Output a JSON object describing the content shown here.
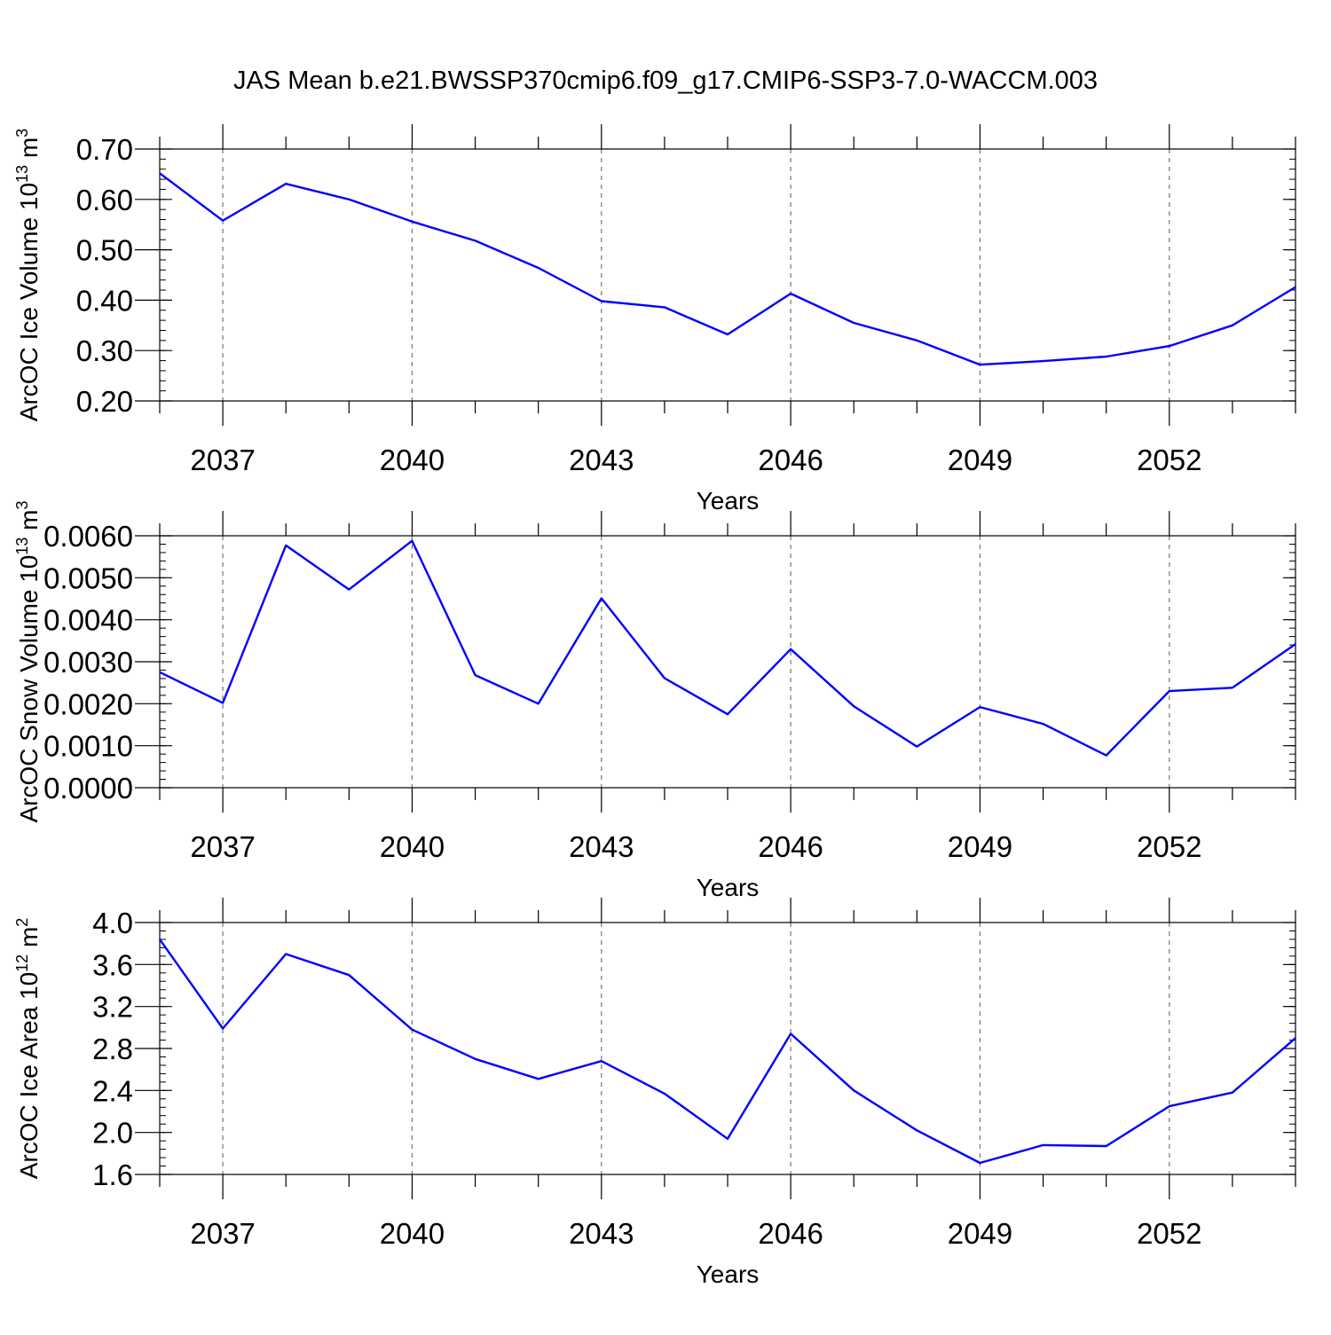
{
  "title": "JAS Mean b.e21.BWSSP370cmip6.f09_g17.CMIP6-SSP3-7.0-WACCM.003",
  "colors": {
    "line": "#0000ff",
    "axis": "#000000",
    "grid": "#777777"
  },
  "chart_data": [
    {
      "type": "line",
      "title": "",
      "xlabel": "Years",
      "ylabel": "ArcOC Ice Volume 10",
      "ylabel_sup": "13",
      "ylabel_unit": "m",
      "ylabel_unit_sup": "3",
      "xlim": [
        2036,
        2054
      ],
      "ylim": [
        0.2,
        0.7
      ],
      "xticks": [
        2037,
        2040,
        2043,
        2046,
        2049,
        2052
      ],
      "yticks": [
        "0.20",
        "0.30",
        "0.40",
        "0.50",
        "0.60",
        "0.70"
      ],
      "grid": "vertical dashed at major x ticks",
      "x": [
        2036,
        2037,
        2038,
        2039,
        2040,
        2041,
        2042,
        2043,
        2044,
        2045,
        2046,
        2047,
        2048,
        2049,
        2050,
        2051,
        2052,
        2053,
        2054
      ],
      "series": [
        {
          "values": [
            0.652,
            0.558,
            0.631,
            0.6,
            0.556,
            0.518,
            0.464,
            0.398,
            0.386,
            0.332,
            0.413,
            0.355,
            0.32,
            0.272,
            0.279,
            0.288,
            0.309,
            0.35,
            0.426
          ]
        }
      ]
    },
    {
      "type": "line",
      "title": "",
      "xlabel": "Years",
      "ylabel": "ArcOC Snow Volume 10",
      "ylabel_sup": "13",
      "ylabel_unit": "m",
      "ylabel_unit_sup": "3",
      "xlim": [
        2036,
        2054
      ],
      "ylim": [
        0.0,
        0.006
      ],
      "xticks": [
        2037,
        2040,
        2043,
        2046,
        2049,
        2052
      ],
      "yticks": [
        "0.0000",
        "0.0010",
        "0.0020",
        "0.0030",
        "0.0040",
        "0.0050",
        "0.0060"
      ],
      "grid": "vertical dashed at major x ticks",
      "x": [
        2036,
        2037,
        2038,
        2039,
        2040,
        2041,
        2042,
        2043,
        2044,
        2045,
        2046,
        2047,
        2048,
        2049,
        2050,
        2051,
        2052,
        2053,
        2054
      ],
      "series": [
        {
          "values": [
            0.00275,
            0.00202,
            0.00577,
            0.00472,
            0.00588,
            0.00268,
            0.002,
            0.00451,
            0.00261,
            0.00175,
            0.0033,
            0.00194,
            0.00098,
            0.00192,
            0.00152,
            0.00077,
            0.0023,
            0.00238,
            0.00342
          ]
        }
      ]
    },
    {
      "type": "line",
      "title": "",
      "xlabel": "Years",
      "ylabel": "ArcOC Ice Area 10",
      "ylabel_sup": "12",
      "ylabel_unit": "m",
      "ylabel_unit_sup": "2",
      "xlim": [
        2036,
        2054
      ],
      "ylim": [
        1.6,
        4.0
      ],
      "xticks": [
        2037,
        2040,
        2043,
        2046,
        2049,
        2052
      ],
      "yticks": [
        "1.6",
        "2.0",
        "2.4",
        "2.8",
        "3.2",
        "3.6",
        "4.0"
      ],
      "grid": "vertical dashed at major x ticks",
      "x": [
        2036,
        2037,
        2038,
        2039,
        2040,
        2041,
        2042,
        2043,
        2044,
        2045,
        2046,
        2047,
        2048,
        2049,
        2050,
        2051,
        2052,
        2053,
        2054
      ],
      "series": [
        {
          "values": [
            3.84,
            2.99,
            3.7,
            3.5,
            2.98,
            2.7,
            2.51,
            2.68,
            2.37,
            1.94,
            2.94,
            2.4,
            2.02,
            1.71,
            1.88,
            1.87,
            2.25,
            2.38,
            2.9
          ]
        }
      ]
    }
  ]
}
